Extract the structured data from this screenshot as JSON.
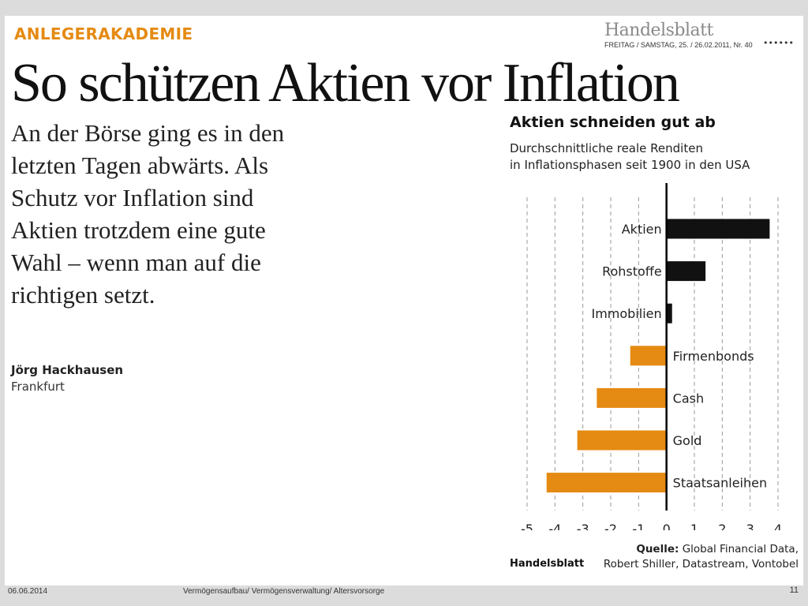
{
  "header": {
    "kicker": "ANLEGERAKADEMIE",
    "newspaper": "Handelsblatt",
    "dateline": "FREITAG / SAMSTAG, 25. / 26.02.2011, Nr. 40",
    "dots": "••••••"
  },
  "headline": "So schützen Aktien vor Inflation",
  "lead": "An der Börse ging es in den letzten Tagen abwärts. Als Schutz vor Inflation sind Aktien trotzdem eine gute Wahl – wenn man auf die richtigen setzt.",
  "author": "Jörg Hackhausen",
  "location": "Frankfurt",
  "chart_data": {
    "type": "bar",
    "orientation": "horizontal",
    "title": "Aktien schneiden gut ab",
    "subtitle_lines": [
      "Durchschnittliche reale Renditen",
      "in Inflationsphasen seit 1900 in den USA"
    ],
    "categories": [
      "Aktien",
      "Rohstoffe",
      "Immobilien",
      "Firmenbonds",
      "Cash",
      "Gold",
      "Staatsanleihen"
    ],
    "values": [
      3.7,
      1.4,
      0.2,
      -1.3,
      -2.5,
      -3.2,
      -4.3
    ],
    "xlim": [
      -5,
      4
    ],
    "xticks": [
      "-5",
      "-4",
      "-3",
      "-2",
      "-1",
      "0",
      "1",
      "2",
      "3",
      "4"
    ],
    "grid": "vertical dashed",
    "colors": {
      "positive": "#111111",
      "negative": "#e58a12",
      "grid": "#9a9a9a"
    },
    "source_label": "Quelle:",
    "source_lines": [
      "Global Financial Data,",
      "Robert Shiller, Datastream, Vontobel"
    ],
    "source_brand": "Handelsblatt"
  },
  "footer": {
    "date": "06.06.2014",
    "topic": "Vermögensaufbau/ Vermögensverwaltung/ Altersvorsorge",
    "page": "11"
  }
}
